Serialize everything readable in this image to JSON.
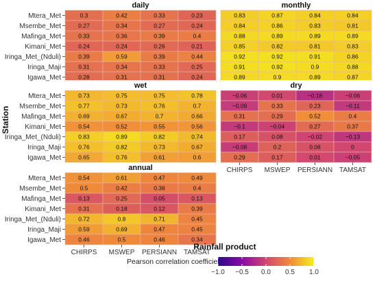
{
  "chart_data": {
    "type": "heatmap",
    "xlabel": "Rainfall product",
    "ylabel": "Station",
    "products": [
      "CHIRPS",
      "MSWEP",
      "PERSIANN",
      "TAMSAT"
    ],
    "stations": [
      "Mtera_Met",
      "Msembe_Met",
      "Mafinga_Met",
      "Kimani_Met",
      "Iringa_Met_(Nduli)",
      "Iringa_Maji",
      "Igawa_Met"
    ],
    "legend": {
      "title": "Pearson correlation coefficient (r)",
      "range": [
        -1.0,
        1.0
      ],
      "ticks": [
        "−1.0",
        "−0.5",
        "0.0",
        "0.5",
        "1.0"
      ],
      "colors": [
        "#2c0a8a",
        "#8a0ba6",
        "#d1476f",
        "#f08a3b",
        "#f5f01f"
      ],
      "position": "bottom"
    },
    "panels": [
      {
        "title": "daily",
        "values": [
          [
            "0.3",
            "0.42",
            "0.33",
            "0.23"
          ],
          [
            "0.27",
            "0.34",
            "0.27",
            "0.24"
          ],
          [
            "0.33",
            "0.36",
            "0.39",
            "0.4"
          ],
          [
            "0.24",
            "0.24",
            "0.26",
            "0.21"
          ],
          [
            "0.39",
            "0.59",
            "0.39",
            "0.44"
          ],
          [
            "0.31",
            "0.34",
            "0.33",
            "0.25"
          ],
          [
            "0.28",
            "0.31",
            "0.31",
            "0.24"
          ]
        ]
      },
      {
        "title": "monthly",
        "values": [
          [
            "0.83",
            "0.87",
            "0.84",
            "0.84"
          ],
          [
            "0.84",
            "0.86",
            "0.83",
            "0.81"
          ],
          [
            "0.88",
            "0.89",
            "0.89",
            "0.89"
          ],
          [
            "0.85",
            "0.82",
            "0.81",
            "0.83"
          ],
          [
            "0.92",
            "0.92",
            "0.91",
            "0.86"
          ],
          [
            "0.91",
            "0.92",
            "0.9",
            "0.88"
          ],
          [
            "0.89",
            "0.9",
            "0.89",
            "0.87"
          ]
        ]
      },
      {
        "title": "wet",
        "values": [
          [
            "0.73",
            "0.75",
            "0.75",
            "0.78"
          ],
          [
            "0.77",
            "0.73",
            "0.76",
            "0.7"
          ],
          [
            "0.69",
            "0.67",
            "0.7",
            "0.66"
          ],
          [
            "0.54",
            "0.52",
            "0.55",
            "0.56"
          ],
          [
            "0.83",
            "0.89",
            "0.82",
            "0.74"
          ],
          [
            "0.76",
            "0.82",
            "0.73",
            "0.67"
          ],
          [
            "0.65",
            "0.76",
            "0.61",
            "0.6"
          ]
        ]
      },
      {
        "title": "dry",
        "values": [
          [
            "−0.06",
            "0.01",
            "−0.18",
            "−0.06"
          ],
          [
            "−0.09",
            "0.33",
            "0.23",
            "−0.11"
          ],
          [
            "0.31",
            "0.29",
            "0.52",
            "0.4"
          ],
          [
            "−0.1",
            "−0.04",
            "0.27",
            "0.37"
          ],
          [
            "0.17",
            "0.08",
            "−0.02",
            "−0.13"
          ],
          [
            "−0.08",
            "0.2",
            "0.08",
            "0"
          ],
          [
            "0.29",
            "0.17",
            "0.01",
            "−0.05"
          ]
        ]
      },
      {
        "title": "annual",
        "values": [
          [
            "0.54",
            "0.61",
            "0.47",
            "0.49"
          ],
          [
            "0.5",
            "0.42",
            "0.38",
            "0.4"
          ],
          [
            "0.13",
            "0.25",
            "0.05",
            "0.13"
          ],
          [
            "0.31",
            "0.18",
            "0.12",
            "0.39"
          ],
          [
            "0.72",
            "0.8",
            "0.71",
            "0.45"
          ],
          [
            "0.59",
            "0.69",
            "0.47",
            "0.45"
          ],
          [
            "0.46",
            "0.5",
            "0.46",
            "0.34"
          ]
        ]
      }
    ]
  }
}
